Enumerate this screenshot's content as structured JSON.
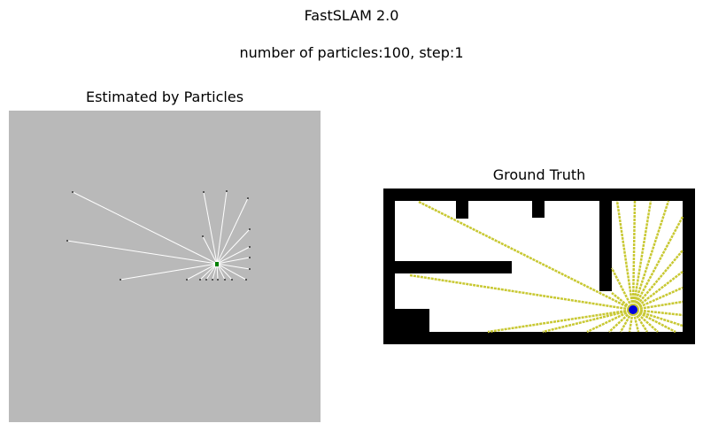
{
  "figure": {
    "title": "FastSLAM 2.0",
    "subtitle": "number of particles:100, step:1"
  },
  "left_plot": {
    "title": "Estimated by Particles",
    "background_color": "#b9b9b9",
    "ray_color": "#ffffff",
    "particle_color": "#008000"
  },
  "right_plot": {
    "title": "Ground Truth",
    "wall_color": "#000000",
    "ray_color": "#c8c832",
    "robot_color": "#0000dd"
  }
}
